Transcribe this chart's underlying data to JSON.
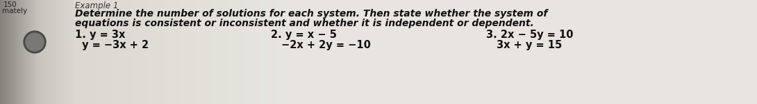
{
  "page_bg": "#dcdad2",
  "binding_dark": "#8a8880",
  "binding_mid": "#b0aea6",
  "binding_light": "#c8c6be",
  "circle_color": "#4a4a4a",
  "example_label": "Example 1",
  "instruction_line1": "Determine the number of solutions for each system. Then state whether the system of",
  "instruction_line2": "equations is consistent or inconsistent and whether it is independent or dependent.",
  "prob1_label": "1.",
  "prob1_line1": "y = 3x",
  "prob1_line2": "y = −3x + 2",
  "prob2_label": "2.",
  "prob2_line1": "y = x − 5",
  "prob2_line2": "−2x + 2y = −10",
  "prob3_label": "3.",
  "prob3_line1": "2x − 5y = 10",
  "prob3_line2": "3x + y = 15",
  "tab_numbers": "150",
  "tab_label": "mately"
}
